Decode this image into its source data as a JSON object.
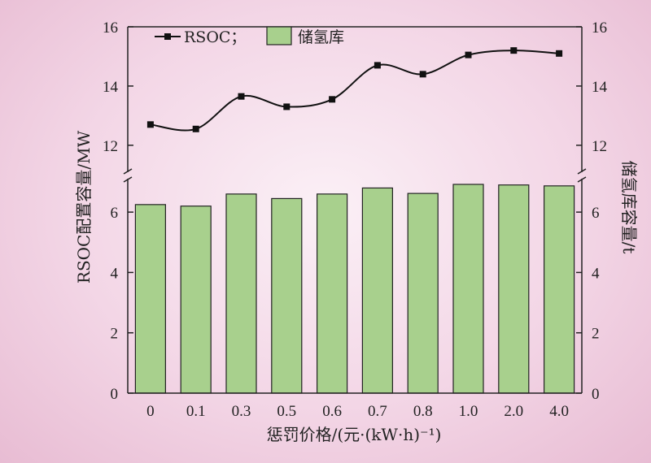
{
  "chart_data": {
    "type": "bar",
    "categories": [
      "0",
      "0.1",
      "0.3",
      "0.5",
      "0.6",
      "0.7",
      "0.8",
      "1.0",
      "2.0",
      "4.0"
    ],
    "xlabel": "惩罚价格/(元·(kW·h)⁻¹)",
    "ylabel_left": "RSOC配置容量/MW",
    "ylabel_right": "储氢库容量/t",
    "y_axis": {
      "broken": true,
      "lower_range": [
        0,
        7
      ],
      "upper_range": [
        11.2,
        16
      ],
      "lower_ticks": [
        0,
        2,
        4,
        6
      ],
      "upper_ticks": [
        12,
        14,
        16
      ]
    },
    "series": [
      {
        "name": "RSOC",
        "type": "line",
        "marker": "square",
        "color": "#111111",
        "values": [
          12.7,
          12.55,
          13.65,
          13.3,
          13.55,
          14.7,
          14.4,
          15.05,
          15.2,
          15.1
        ]
      },
      {
        "name": "储氢库",
        "type": "bar",
        "color": "#a8d08d",
        "values": [
          6.25,
          6.2,
          6.6,
          6.45,
          6.6,
          6.8,
          6.62,
          6.92,
          6.9,
          6.87
        ]
      }
    ],
    "legend": {
      "placement": "top-left",
      "items": [
        "RSOC；",
        "储氢库"
      ]
    },
    "grid": false
  }
}
